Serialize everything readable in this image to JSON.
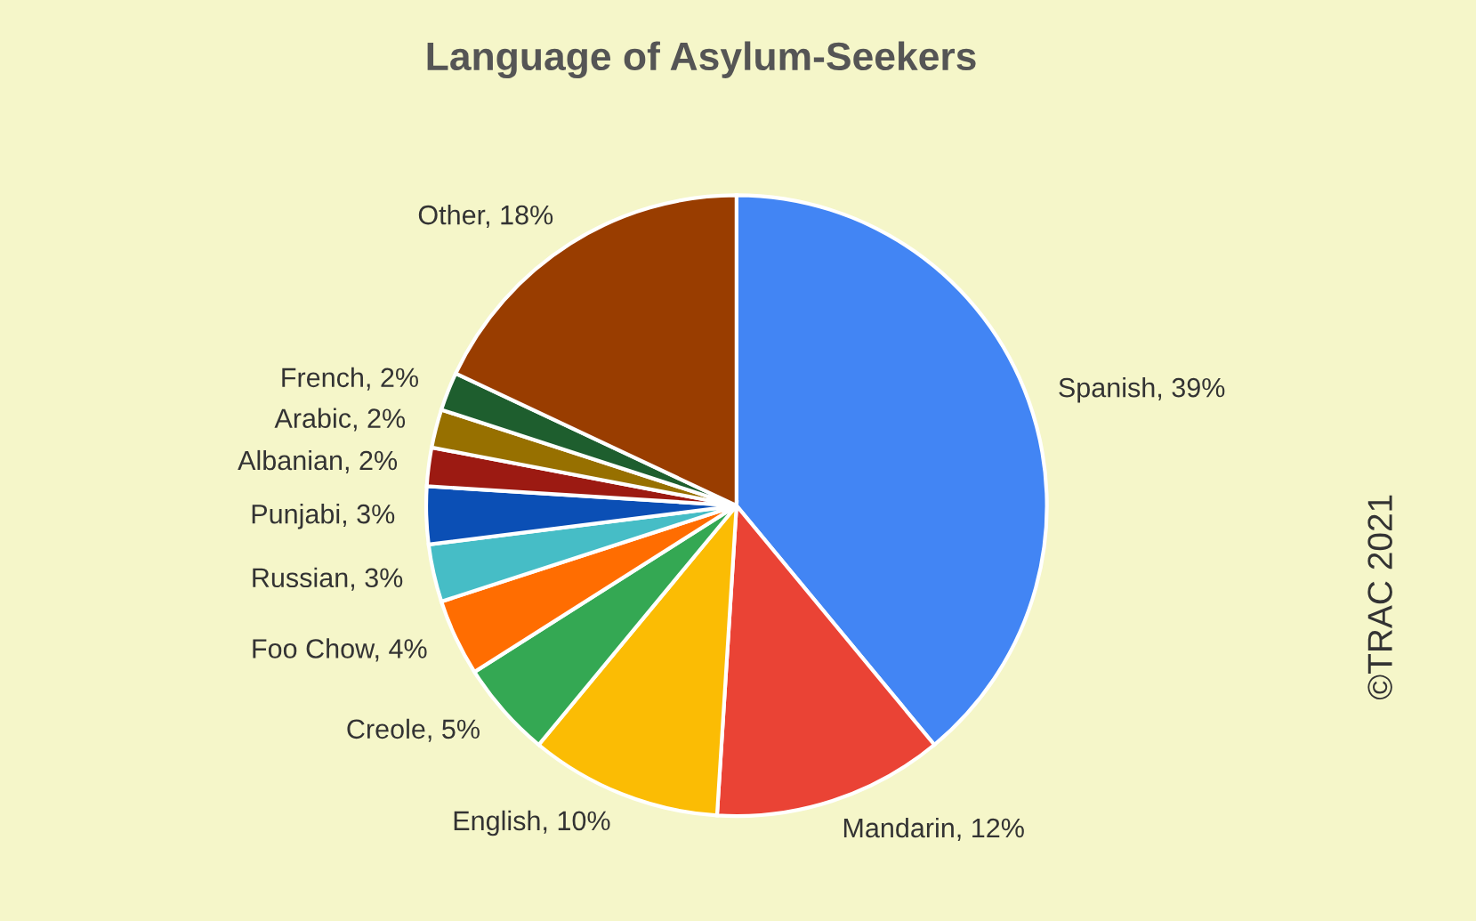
{
  "chart_data": {
    "type": "pie",
    "title": "Language of Asylum-Seekers",
    "categories": [
      "Spanish, 39%",
      "Mandarin, 12%",
      "English, 10%",
      "Creole, 5%",
      "Foo Chow, 4%",
      "Russian, 3%",
      "Punjabi, 3%",
      "Albanian, 2%",
      "Arabic, 2%",
      "French, 2%",
      "Other, 18%"
    ],
    "values": [
      39,
      12,
      10,
      5,
      4,
      3,
      3,
      2,
      2,
      2,
      18
    ],
    "colors": [
      "#4285f4",
      "#ea4335",
      "#fbbc04",
      "#34a853",
      "#ff6d01",
      "#46bdc6",
      "#0b4fb5",
      "#9c1a12",
      "#977000",
      "#1e5e2e",
      "#993d00"
    ],
    "annotations": [
      "©TRAC 2021"
    ]
  }
}
